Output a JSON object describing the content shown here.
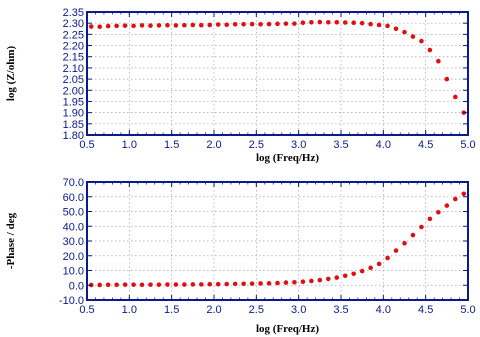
{
  "colors": {
    "axis": "#0a1a8c",
    "grid": "#9aa3b5",
    "marker": "#e01010"
  },
  "chart_data": [
    {
      "type": "scatter",
      "title": "",
      "xlabel": "log (Freq/Hz)",
      "ylabel": "log (Z/ohm)",
      "xlim": [
        0.5,
        5.0
      ],
      "ylim": [
        1.8,
        2.35
      ],
      "x_ticks": [
        "0.5",
        "1.0",
        "1.5",
        "2.0",
        "2.5",
        "3.0",
        "3.5",
        "4.0",
        "4.5",
        "5.0"
      ],
      "y_ticks": [
        "1.80",
        "1.85",
        "1.90",
        "1.95",
        "2.00",
        "2.05",
        "2.10",
        "2.15",
        "2.20",
        "2.25",
        "2.30",
        "2.35"
      ],
      "grid": true,
      "series": [
        {
          "x": [
            0.55,
            0.65,
            0.75,
            0.85,
            0.95,
            1.05,
            1.15,
            1.25,
            1.35,
            1.45,
            1.55,
            1.65,
            1.75,
            1.85,
            1.95,
            2.05,
            2.15,
            2.25,
            2.35,
            2.45,
            2.55,
            2.65,
            2.75,
            2.85,
            2.95,
            3.05,
            3.15,
            3.25,
            3.35,
            3.45,
            3.55,
            3.65,
            3.75,
            3.85,
            3.95,
            4.05,
            4.15,
            4.25,
            4.35,
            4.45,
            4.55,
            4.65,
            4.75,
            4.85,
            4.95
          ],
          "y": [
            2.285,
            2.284,
            2.287,
            2.288,
            2.289,
            2.288,
            2.29,
            2.289,
            2.29,
            2.291,
            2.29,
            2.291,
            2.292,
            2.291,
            2.292,
            2.294,
            2.293,
            2.295,
            2.295,
            2.296,
            2.295,
            2.296,
            2.297,
            2.298,
            2.298,
            2.302,
            2.304,
            2.305,
            2.304,
            2.304,
            2.303,
            2.302,
            2.3,
            2.296,
            2.292,
            2.288,
            2.275,
            2.26,
            2.24,
            2.22,
            2.18,
            2.13,
            2.05,
            1.97,
            1.9
          ]
        }
      ]
    },
    {
      "type": "scatter",
      "title": "",
      "xlabel": "log (Freq/Hz)",
      "ylabel": "-Phase / deg",
      "xlim": [
        0.5,
        5.0
      ],
      "ylim": [
        -10,
        70
      ],
      "x_ticks": [
        "0.5",
        "1.0",
        "1.5",
        "2.0",
        "2.5",
        "3.0",
        "3.5",
        "4.0",
        "4.5",
        "5.0"
      ],
      "y_ticks": [
        "-10.0",
        "0.0",
        "10.0",
        "20.0",
        "30.0",
        "40.0",
        "50.0",
        "60.0",
        "70.0"
      ],
      "grid": true,
      "series": [
        {
          "x": [
            0.55,
            0.65,
            0.75,
            0.85,
            0.95,
            1.05,
            1.15,
            1.25,
            1.35,
            1.45,
            1.55,
            1.65,
            1.75,
            1.85,
            1.95,
            2.05,
            2.15,
            2.25,
            2.35,
            2.45,
            2.55,
            2.65,
            2.75,
            2.85,
            2.95,
            3.05,
            3.15,
            3.25,
            3.35,
            3.45,
            3.55,
            3.65,
            3.75,
            3.85,
            3.95,
            4.05,
            4.15,
            4.25,
            4.35,
            4.45,
            4.55,
            4.65,
            4.75,
            4.85,
            4.95
          ],
          "y": [
            0.2,
            0.2,
            0.3,
            0.3,
            0.4,
            0.4,
            0.3,
            0.4,
            0.4,
            0.5,
            0.5,
            0.5,
            0.6,
            0.6,
            0.7,
            0.7,
            0.8,
            0.9,
            1.0,
            1.1,
            1.2,
            1.3,
            1.5,
            1.8,
            2.0,
            2.4,
            2.9,
            3.5,
            4.3,
            5.2,
            6.4,
            7.8,
            9.6,
            11.8,
            14.5,
            18.5,
            23.5,
            28.5,
            34.0,
            39.5,
            45.0,
            49.5,
            54.0,
            58.5,
            62.0
          ]
        }
      ]
    }
  ]
}
